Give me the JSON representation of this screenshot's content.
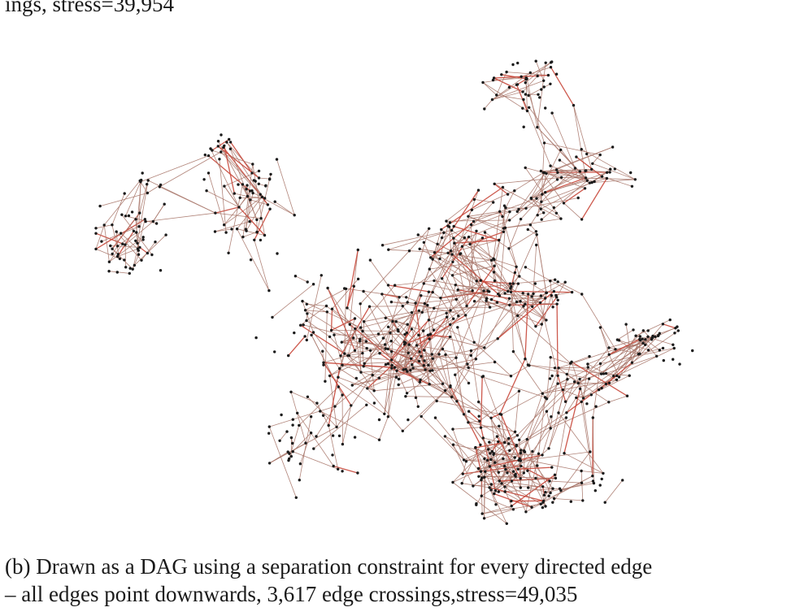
{
  "captions": {
    "top_fragment": "ings, stress=39,954",
    "bottom_line1": "(b)  Drawn as a DAG using a separation constraint for every directed edge",
    "bottom_line2": "– all edges point downwards, 3,617 edge crossings,stress=49,035"
  },
  "colors": {
    "node": "#1a1a1a",
    "edge": "#a8776a",
    "edge_strong": "#c8473a"
  }
}
